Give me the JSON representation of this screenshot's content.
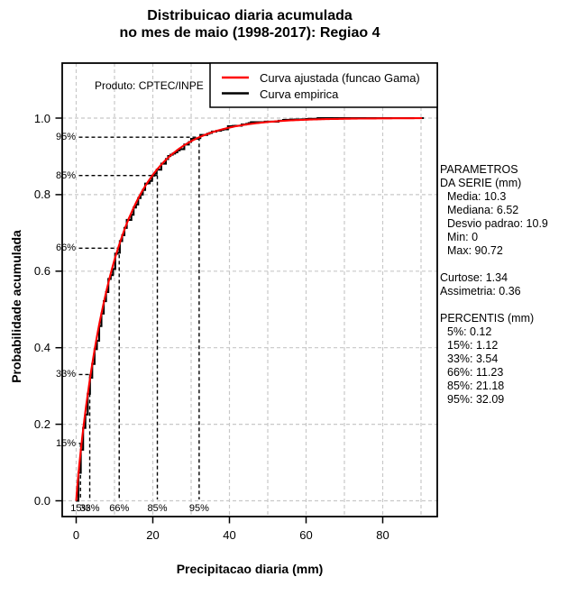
{
  "title": {
    "line1": "Distribuicao diaria acumulada",
    "line2": "no mes de maio (1998-2017): Regiao 4"
  },
  "product_label": "Produto: CPTEC/INPE",
  "axes": {
    "xlabel": "Precipitacao diaria (mm)",
    "ylabel": "Probabilidade acumulada",
    "x_ticks": [
      0,
      20,
      40,
      60,
      80
    ],
    "y_ticks": [
      {
        "label": "0.0",
        "v": 0.0
      },
      {
        "label": "0.2",
        "v": 0.2
      },
      {
        "label": "0.4",
        "v": 0.4
      },
      {
        "label": "0.6",
        "v": 0.6
      },
      {
        "label": "0.8",
        "v": 0.8
      },
      {
        "label": "1.0",
        "v": 1.0
      }
    ]
  },
  "legend": {
    "items": [
      {
        "label": "Curva ajustada (funcao Gama)",
        "color": "#ff0000"
      },
      {
        "label": "Curva empirica",
        "color": "#000000"
      }
    ]
  },
  "side_panel": {
    "lines": [
      {
        "text": "PARAMETROS",
        "indent": 0
      },
      {
        "text": "DA SERIE (mm)",
        "indent": 0
      },
      {
        "text": "Media: 10.3",
        "indent": 1
      },
      {
        "text": "Mediana: 6.52",
        "indent": 1
      },
      {
        "text": "Desvio padrao: 10.9",
        "indent": 1
      },
      {
        "text": "Min: 0",
        "indent": 1
      },
      {
        "text": "Max: 90.72",
        "indent": 1
      },
      {
        "text": "",
        "indent": 0
      },
      {
        "text": "Curtose: 1.34",
        "indent": 0
      },
      {
        "text": "Assimetria: 0.36",
        "indent": 0
      },
      {
        "text": "",
        "indent": 0
      },
      {
        "text": "PERCENTIS (mm)",
        "indent": 0
      },
      {
        "text": "5%: 0.12",
        "indent": 1
      },
      {
        "text": "15%: 1.12",
        "indent": 1
      },
      {
        "text": "33%: 3.54",
        "indent": 1
      },
      {
        "text": "66%: 11.23",
        "indent": 1
      },
      {
        "text": "85%: 21.18",
        "indent": 1
      },
      {
        "text": "95%: 32.09",
        "indent": 1
      }
    ]
  },
  "chart_data": {
    "type": "line",
    "title": "Distribuicao diaria acumulada no mes de maio (1998-2017): Regiao 4",
    "xlabel": "Precipitacao diaria (mm)",
    "ylabel": "Probabilidade acumulada",
    "xlim": [
      -3.8,
      94.2
    ],
    "ylim": [
      -0.041,
      1.144
    ],
    "grid": {
      "x_lines": [
        0,
        10,
        20,
        30,
        40,
        50,
        60,
        70,
        80,
        90
      ],
      "y_lines": [
        0,
        0.2,
        0.4,
        0.6,
        0.8,
        1.0
      ],
      "color": "#c8c8c8",
      "style": "dashed"
    },
    "legend_position": "top-right-inside",
    "series": [
      {
        "name": "Curva empirica",
        "color": "#000000",
        "model": "empirical_step_cdf",
        "x_range": [
          0,
          90.72
        ]
      },
      {
        "name": "Curva ajustada (funcao Gama)",
        "color": "#ff0000",
        "model": "gamma_cdf",
        "mean": 10.3,
        "sd": 10.9,
        "shape": 0.893,
        "scale": 11.534,
        "x_range": [
          0,
          90.72
        ]
      }
    ],
    "stats": {
      "media": 10.3,
      "mediana": 6.52,
      "desvio_padrao": 10.9,
      "min": 0,
      "max": 90.72,
      "curtose": 1.34,
      "assimetria": 0.36
    },
    "anchor_points": [
      [
        0,
        0
      ],
      [
        0.12,
        0.05
      ],
      [
        1.12,
        0.15
      ],
      [
        3.54,
        0.33
      ],
      [
        11.23,
        0.66
      ],
      [
        21.18,
        0.85
      ],
      [
        32.09,
        0.95
      ],
      [
        90.72,
        1.0
      ]
    ],
    "percentiles": [
      {
        "label": "5%",
        "value_mm": 0.12,
        "p": 0.05,
        "guide": false
      },
      {
        "label": "15%",
        "value_mm": 1.12,
        "p": 0.15,
        "guide": true
      },
      {
        "label": "33%",
        "value_mm": 3.54,
        "p": 0.33,
        "guide": true
      },
      {
        "label": "66%",
        "value_mm": 11.23,
        "p": 0.66,
        "guide": true
      },
      {
        "label": "85%",
        "value_mm": 21.18,
        "p": 0.85,
        "guide": true
      },
      {
        "label": "95%",
        "value_mm": 32.09,
        "p": 0.95,
        "guide": true
      }
    ]
  }
}
